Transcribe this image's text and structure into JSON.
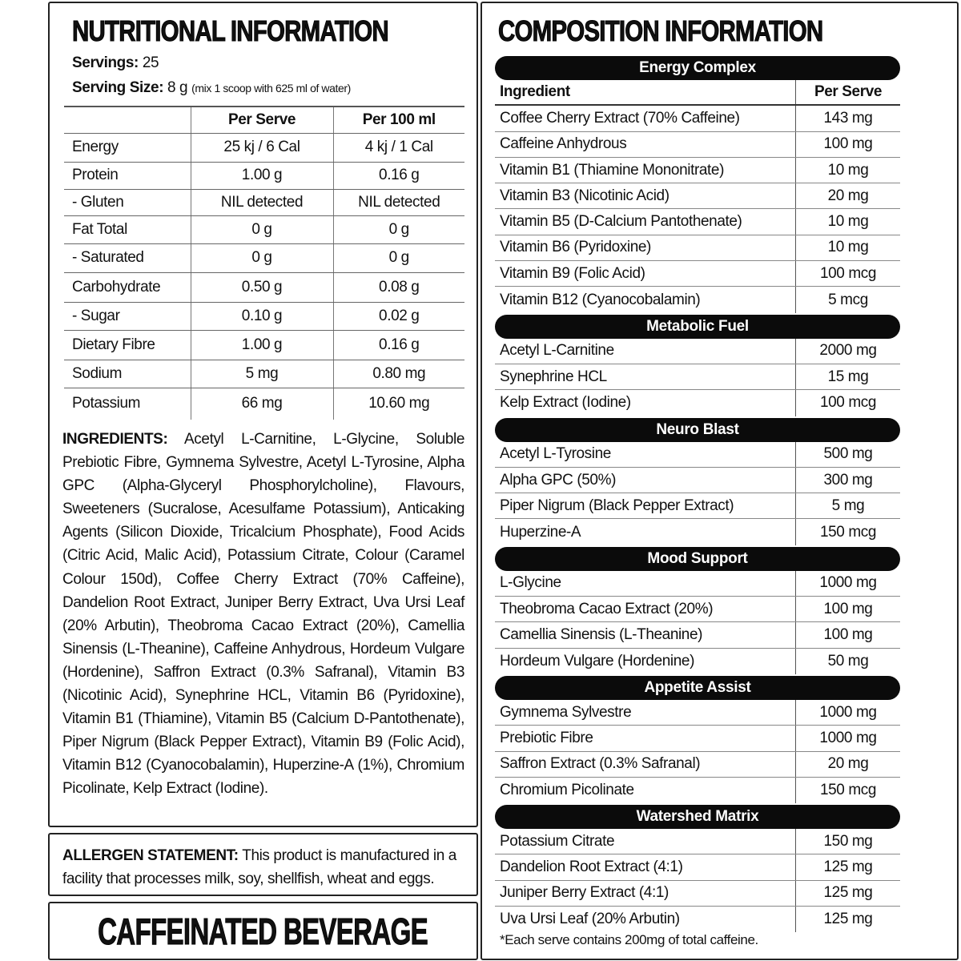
{
  "nutrition": {
    "title": "NUTRITIONAL INFORMATION",
    "servings_label": "Servings:",
    "servings_value": "25",
    "serving_size_label": "Serving Size:",
    "serving_size_value": "8 g",
    "serving_size_note": "(mix 1 scoop with 625 ml of water)",
    "columns": [
      "",
      "Per Serve",
      "Per 100 ml"
    ],
    "rows": [
      [
        "Energy",
        "25 kj / 6 Cal",
        "4 kj / 1 Cal"
      ],
      [
        "Protein",
        "1.00 g",
        "0.16 g"
      ],
      [
        "- Gluten",
        "NIL detected",
        "NIL detected"
      ],
      [
        "Fat Total",
        "0 g",
        "0 g"
      ],
      [
        "- Saturated",
        "0 g",
        "0 g"
      ],
      [
        "Carbohydrate",
        "0.50 g",
        "0.08 g"
      ],
      [
        "- Sugar",
        "0.10 g",
        "0.02 g"
      ],
      [
        "Dietary Fibre",
        "1.00 g",
        "0.16 g"
      ],
      [
        "Sodium",
        "5 mg",
        "0.80 mg"
      ],
      [
        "Potassium",
        "66 mg",
        "10.60 mg"
      ]
    ],
    "ingredients_label": "INGREDIENTS:",
    "ingredients_text": "Acetyl L-Carnitine, L-Glycine, Soluble Prebiotic Fibre, Gymnema Sylvestre, Acetyl L-Tyrosine, Alpha GPC (Alpha-Glyceryl Phosphorylcholine), Flavours, Sweeteners (Sucralose, Acesulfame Potassium), Anticaking Agents (Silicon Dioxide, Tricalcium Phosphate), Food Acids (Citric Acid, Malic Acid), Potassium Citrate, Colour (Caramel Colour 150d), Coffee Cherry Extract (70% Caffeine), Dandelion Root Extract, Juniper Berry Extract, Uva Ursi Leaf (20% Arbutin), Theobroma Cacao Extract (20%), Camellia Sinensis (L-Theanine), Caffeine Anhydrous, Hordeum Vulgare (Hordenine), Saffron Extract (0.3% Safranal), Vitamin B3 (Nicotinic Acid), Synephrine HCL, Vitamin B6 (Pyridoxine), Vitamin B1 (Thiamine), Vitamin B5 (Calcium D-Pantothenate), Piper Nigrum (Black Pepper Extract), Vitamin B9 (Folic Acid), Vitamin B12 (Cyanocobalamin), Huperzine-A (1%), Chromium Picolinate, Kelp Extract (Iodine)."
  },
  "allergen": {
    "label": "ALLERGEN STATEMENT:",
    "text": "This product is manufactured in a facility that processes milk, soy, shellfish, wheat and eggs."
  },
  "banner": "CAFFEINATED BEVERAGE",
  "composition": {
    "title": "COMPOSITION INFORMATION",
    "col_ingredient": "Ingredient",
    "col_per_serve": "Per Serve",
    "sections": [
      {
        "name": "Energy Complex",
        "rows": [
          [
            "Coffee Cherry Extract (70% Caffeine)",
            "143 mg"
          ],
          [
            "Caffeine Anhydrous",
            "100 mg"
          ],
          [
            "Vitamin B1 (Thiamine Mononitrate)",
            "10 mg"
          ],
          [
            "Vitamin B3 (Nicotinic Acid)",
            "20 mg"
          ],
          [
            "Vitamin B5 (D-Calcium Pantothenate)",
            "10 mg"
          ],
          [
            "Vitamin B6 (Pyridoxine)",
            "10 mg"
          ],
          [
            "Vitamin B9 (Folic Acid)",
            "100 mcg"
          ],
          [
            "Vitamin B12 (Cyanocobalamin)",
            "5 mcg"
          ]
        ]
      },
      {
        "name": "Metabolic Fuel",
        "rows": [
          [
            "Acetyl L-Carnitine",
            "2000 mg"
          ],
          [
            "Synephrine HCL",
            "15 mg"
          ],
          [
            "Kelp Extract (Iodine)",
            "100 mcg"
          ]
        ]
      },
      {
        "name": "Neuro Blast",
        "rows": [
          [
            "Acetyl L-Tyrosine",
            "500 mg"
          ],
          [
            "Alpha GPC (50%)",
            "300 mg"
          ],
          [
            "Piper Nigrum (Black Pepper Extract)",
            "5 mg"
          ],
          [
            "Huperzine-A",
            "150 mcg"
          ]
        ]
      },
      {
        "name": "Mood Support",
        "rows": [
          [
            "L-Glycine",
            "1000 mg"
          ],
          [
            "Theobroma Cacao Extract (20%)",
            "100 mg"
          ],
          [
            "Camellia Sinensis (L-Theanine)",
            "100 mg"
          ],
          [
            "Hordeum Vulgare (Hordenine)",
            "50 mg"
          ]
        ]
      },
      {
        "name": "Appetite Assist",
        "rows": [
          [
            "Gymnema Sylvestre",
            "1000 mg"
          ],
          [
            "Prebiotic Fibre",
            "1000 mg"
          ],
          [
            "Saffron Extract (0.3% Safranal)",
            "20 mg"
          ],
          [
            "Chromium Picolinate",
            "150 mcg"
          ]
        ]
      },
      {
        "name": "Watershed Matrix",
        "rows": [
          [
            "Potassium Citrate",
            "150 mg"
          ],
          [
            "Dandelion Root Extract (4:1)",
            "125 mg"
          ],
          [
            "Juniper Berry Extract (4:1)",
            "125 mg"
          ],
          [
            "Uva Ursi Leaf (20% Arbutin)",
            "125 mg"
          ]
        ]
      }
    ],
    "footnote": "*Each serve contains 200mg of total caffeine."
  }
}
